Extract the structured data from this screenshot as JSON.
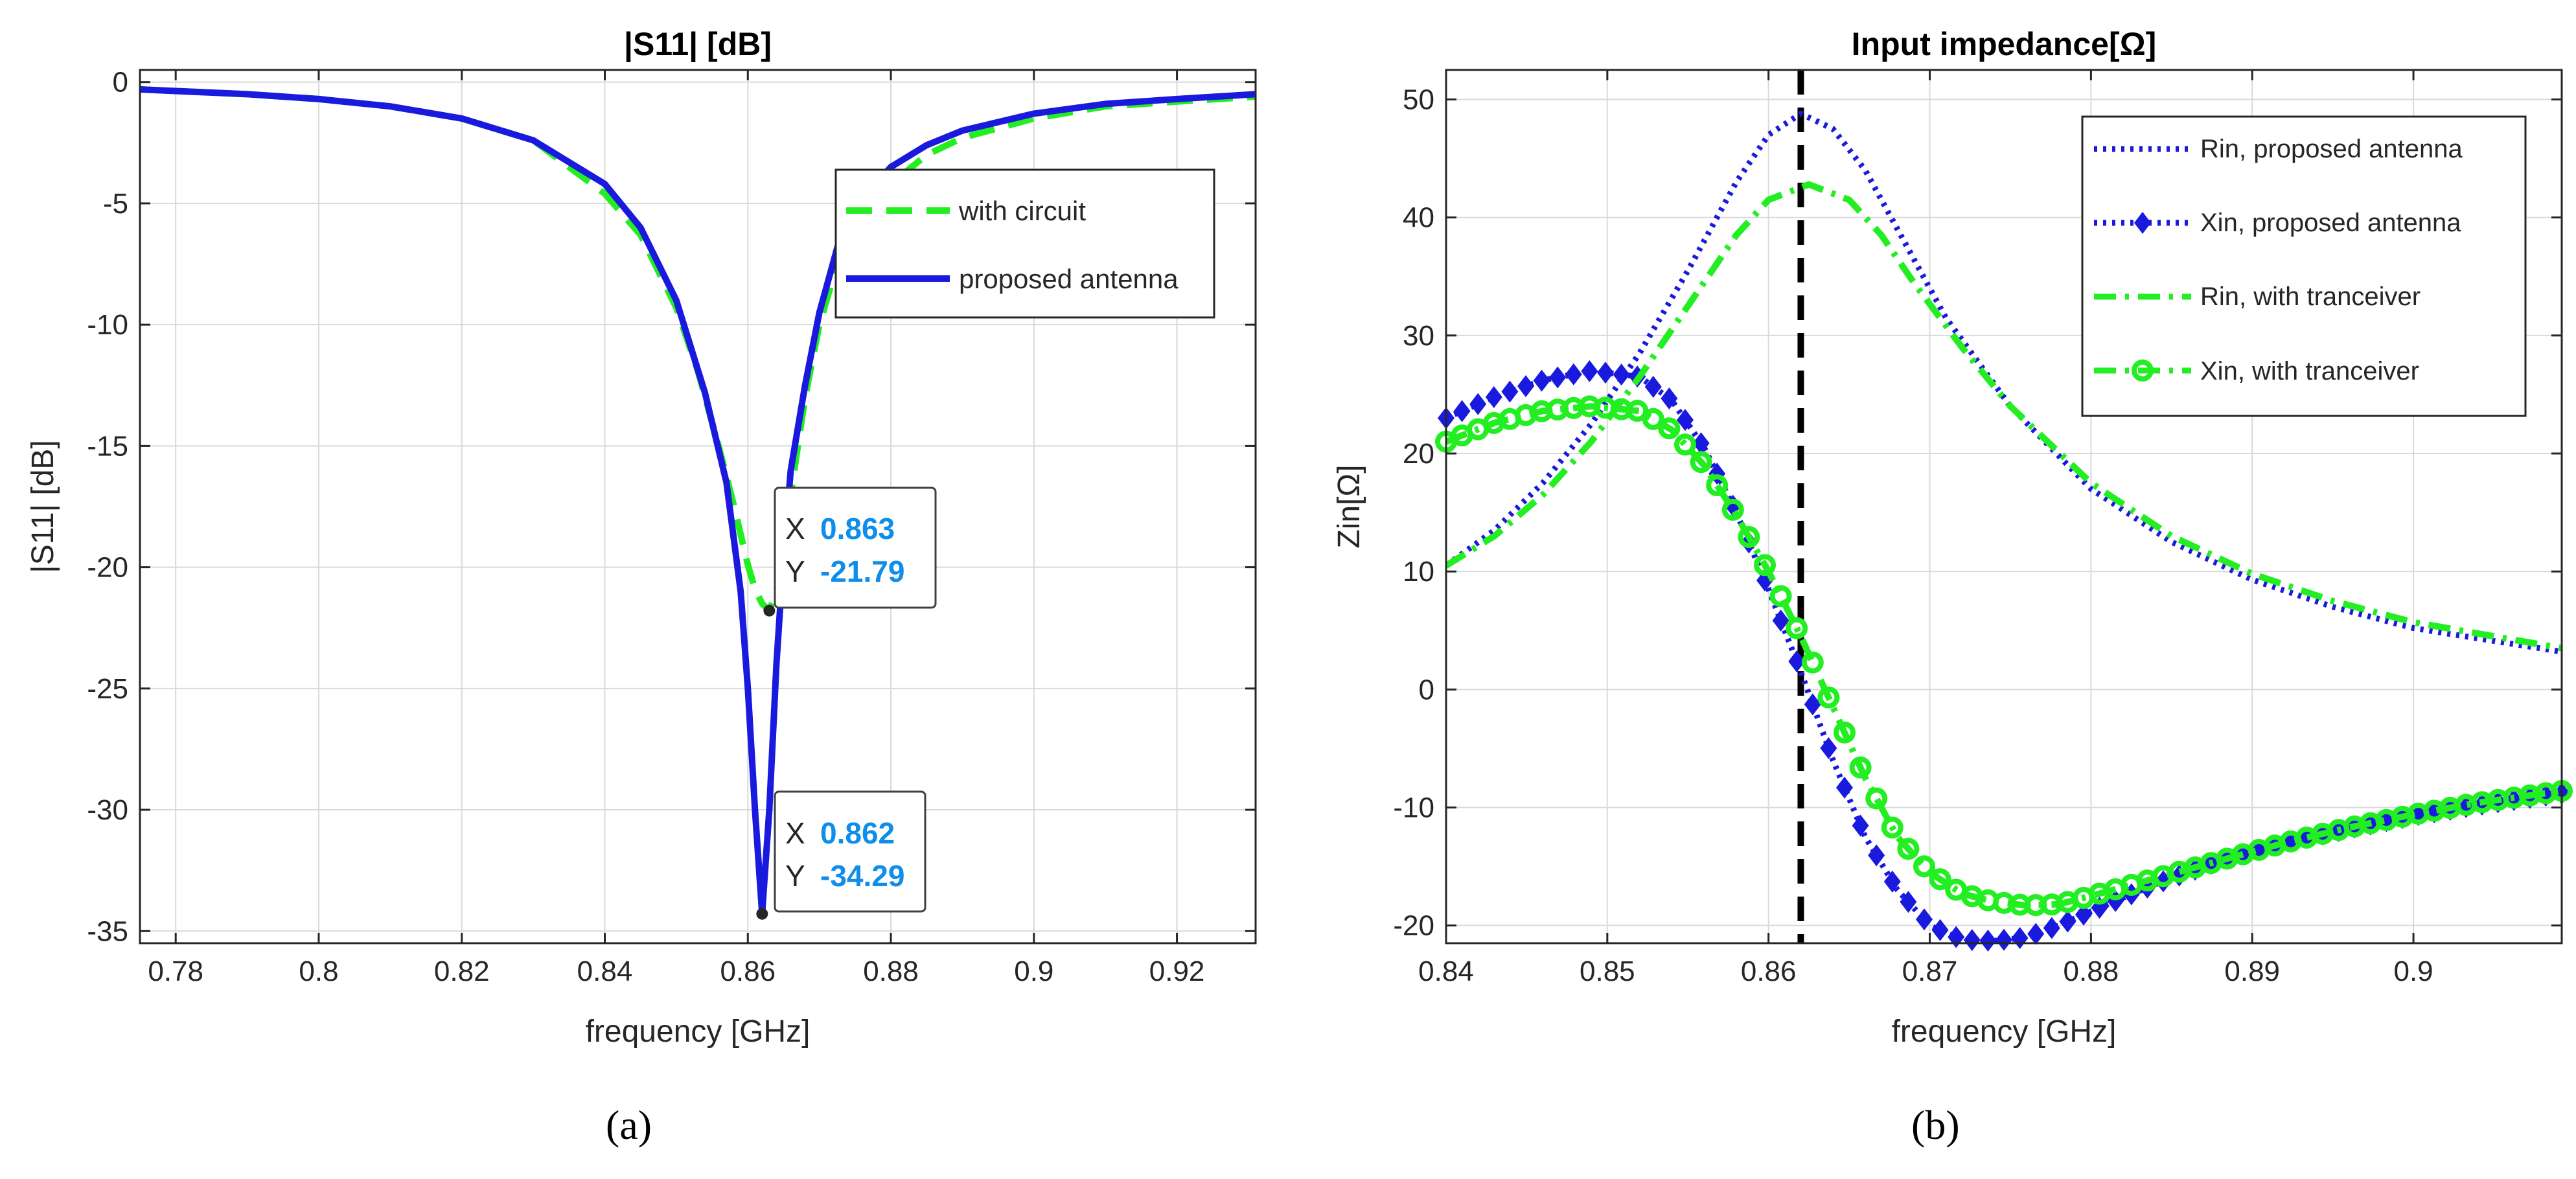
{
  "chart_data": [
    {
      "type": "line",
      "title": "|S11| [dB]",
      "xlabel": "frequency [GHz]",
      "ylabel": "|S11| [dB]",
      "xlim": [
        0.775,
        0.931
      ],
      "ylim": [
        -35.5,
        0.5
      ],
      "xticks": [
        0.78,
        0.8,
        0.82,
        0.84,
        0.86,
        0.88,
        0.9,
        0.92
      ],
      "xtick_labels": [
        "0.78",
        "0.8",
        "0.82",
        "0.84",
        "0.86",
        "0.88",
        "0.9",
        "0.92"
      ],
      "yticks": [
        0,
        -5,
        -10,
        -15,
        -20,
        -25,
        -30,
        -35
      ],
      "ytick_labels": [
        "0",
        "-5",
        "-10",
        "-15",
        "-20",
        "-25",
        "-30",
        "-35"
      ],
      "grid": true,
      "legend_position": "top-right",
      "series": [
        {
          "name": "with circuit",
          "color": "#22ee22",
          "style": "dashed",
          "x": [
            0.775,
            0.79,
            0.8,
            0.81,
            0.82,
            0.83,
            0.84,
            0.845,
            0.85,
            0.853,
            0.856,
            0.858,
            0.86,
            0.861,
            0.862,
            0.863,
            0.864,
            0.865,
            0.866,
            0.868,
            0.87,
            0.873,
            0.876,
            0.88,
            0.885,
            0.89,
            0.9,
            0.91,
            0.92,
            0.931
          ],
          "y": [
            -0.3,
            -0.5,
            -0.7,
            -1.0,
            -1.5,
            -2.4,
            -4.6,
            -6.3,
            -9.3,
            -11.9,
            -15.1,
            -17.4,
            -19.9,
            -20.9,
            -21.5,
            -21.79,
            -21.0,
            -19.0,
            -17.0,
            -13.0,
            -10.0,
            -7.0,
            -5.5,
            -4.2,
            -3.0,
            -2.3,
            -1.5,
            -1.0,
            -0.8,
            -0.6
          ]
        },
        {
          "name": "proposed antenna",
          "color": "#1a1adf",
          "style": "solid",
          "x": [
            0.775,
            0.79,
            0.8,
            0.81,
            0.82,
            0.83,
            0.84,
            0.845,
            0.85,
            0.854,
            0.857,
            0.859,
            0.86,
            0.861,
            0.862,
            0.863,
            0.864,
            0.865,
            0.866,
            0.868,
            0.87,
            0.873,
            0.876,
            0.88,
            0.885,
            0.89,
            0.9,
            0.91,
            0.92,
            0.931
          ],
          "y": [
            -0.3,
            -0.5,
            -0.7,
            -1.0,
            -1.5,
            -2.4,
            -4.2,
            -6.0,
            -9.0,
            -12.8,
            -16.5,
            -21.0,
            -25.0,
            -30.0,
            -34.29,
            -30.0,
            -24.0,
            -19.5,
            -16.0,
            -12.5,
            -9.5,
            -6.3,
            -4.8,
            -3.5,
            -2.6,
            -2.0,
            -1.3,
            -0.9,
            -0.7,
            -0.5
          ]
        }
      ],
      "datatips": [
        {
          "x_label": "X",
          "x_value": "0.863",
          "y_label": "Y",
          "y_value": "-21.79",
          "x": 0.863,
          "y": -21.79
        },
        {
          "x_label": "X",
          "x_value": "0.862",
          "y_label": "Y",
          "y_value": "-34.29",
          "x": 0.862,
          "y": -34.29
        }
      ]
    },
    {
      "type": "line",
      "title": "Input impedance[Ω]",
      "xlabel": "frequency [GHz]",
      "ylabel": "Zin[Ω]",
      "xlim": [
        0.84,
        0.9092
      ],
      "ylim": [
        -21.5,
        52.5
      ],
      "xticks": [
        0.84,
        0.85,
        0.86,
        0.87,
        0.88,
        0.89,
        0.9
      ],
      "xtick_labels": [
        "0.84",
        "0.85",
        "0.86",
        "0.87",
        "0.88",
        "0.89",
        "0.9"
      ],
      "yticks": [
        50,
        40,
        30,
        20,
        10,
        0,
        -10,
        -20
      ],
      "ytick_labels": [
        "50",
        "40",
        "30",
        "20",
        "10",
        "0",
        "-10",
        "-20"
      ],
      "grid": true,
      "legend_position": "top-right",
      "vline_x": 0.862,
      "series": [
        {
          "name": "Rin, proposed antenna",
          "color": "#1a1adf",
          "style": "dotted",
          "marker": "none",
          "x": [
            0.84,
            0.843,
            0.846,
            0.849,
            0.852,
            0.855,
            0.858,
            0.86,
            0.862,
            0.864,
            0.866,
            0.868,
            0.871,
            0.875,
            0.88,
            0.885,
            0.89,
            0.895,
            0.9,
            0.9092
          ],
          "y": [
            10.5,
            13.5,
            17.5,
            22.5,
            28.5,
            35.5,
            43,
            47,
            48.8,
            47.5,
            44,
            39,
            31.5,
            24,
            17,
            12.5,
            9.3,
            7.0,
            5.2,
            3.2
          ]
        },
        {
          "name": "Xin, proposed antenna",
          "color": "#1a1adf",
          "style": "dotted",
          "marker": "diamond",
          "x": [
            0.84,
            0.843,
            0.846,
            0.849,
            0.852,
            0.854,
            0.856,
            0.858,
            0.86,
            0.862,
            0.864,
            0.866,
            0.868,
            0.87,
            0.872,
            0.874,
            0.876,
            0.878,
            0.88,
            0.884,
            0.888,
            0.892,
            0.896,
            0.9,
            0.904,
            0.9092
          ],
          "y": [
            23,
            24.8,
            26.2,
            27.0,
            26.5,
            24.5,
            20.5,
            15.0,
            8.5,
            1.5,
            -6.0,
            -12.5,
            -17.0,
            -20.0,
            -21.2,
            -21.3,
            -21.0,
            -20.0,
            -18.8,
            -16.5,
            -14.5,
            -13.0,
            -11.8,
            -10.7,
            -9.8,
            -8.8
          ]
        },
        {
          "name": "Rin, with tranceiver",
          "color": "#22ee22",
          "style": "dashdot",
          "marker": "none",
          "x": [
            0.84,
            0.843,
            0.846,
            0.849,
            0.852,
            0.855,
            0.858,
            0.86,
            0.8625,
            0.865,
            0.867,
            0.869,
            0.872,
            0.875,
            0.88,
            0.885,
            0.89,
            0.895,
            0.9,
            0.9092
          ],
          "y": [
            10.5,
            13.0,
            16.5,
            21.0,
            26.5,
            32.5,
            38.5,
            41.5,
            42.8,
            41.5,
            38.5,
            34.5,
            29.0,
            24.0,
            17.5,
            13.0,
            9.8,
            7.5,
            5.7,
            3.5
          ]
        },
        {
          "name": "Xin, with tranceiver",
          "color": "#22ee22",
          "style": "dashdot",
          "marker": "circle",
          "x": [
            0.84,
            0.843,
            0.846,
            0.849,
            0.852,
            0.854,
            0.856,
            0.858,
            0.86,
            0.862,
            0.864,
            0.866,
            0.868,
            0.87,
            0.872,
            0.874,
            0.876,
            0.878,
            0.88,
            0.884,
            0.888,
            0.892,
            0.896,
            0.9,
            0.904,
            0.9092
          ],
          "y": [
            21,
            22.6,
            23.6,
            24.0,
            23.6,
            22.0,
            19.0,
            14.8,
            10.0,
            4.5,
            -1.5,
            -7.5,
            -12.5,
            -15.5,
            -17.3,
            -18.0,
            -18.3,
            -18.2,
            -17.5,
            -16.0,
            -14.5,
            -13.0,
            -11.7,
            -10.6,
            -9.6,
            -8.6
          ]
        }
      ]
    }
  ],
  "captions": {
    "a": "(a)",
    "b": "(b)"
  }
}
